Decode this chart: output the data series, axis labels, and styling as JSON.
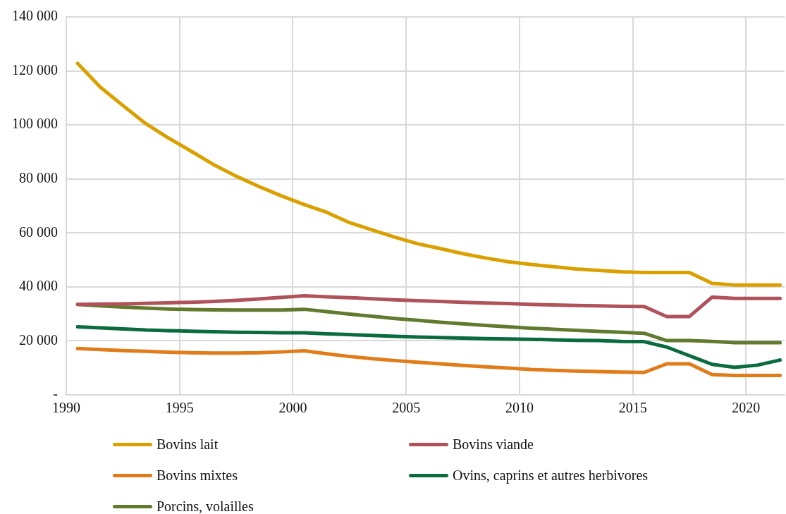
{
  "chart_data": {
    "type": "line",
    "x": [
      1990.5,
      1991.5,
      1992.5,
      1993.5,
      1994.5,
      1995.5,
      1996.5,
      1997.5,
      1998.5,
      1999.5,
      2000.5,
      2001.5,
      2002.5,
      2003.5,
      2004.5,
      2005.5,
      2006.5,
      2007.5,
      2008.5,
      2009.5,
      2010.5,
      2011.5,
      2012.5,
      2013.5,
      2014.5,
      2015.5,
      2016.5,
      2017.5,
      2018.5,
      2019.5,
      2020.5,
      2021.5
    ],
    "series": [
      {
        "name": "Bovins lait",
        "color": "#d9a000",
        "values": [
          122800,
          114000,
          107200,
          100500,
          95200,
          90300,
          85300,
          81000,
          77200,
          73700,
          70500,
          67600,
          63800,
          61100,
          58400,
          56000,
          54200,
          52300,
          50700,
          49300,
          48300,
          47500,
          46600,
          46100,
          45600,
          45300,
          45300,
          45300,
          41300,
          40700,
          40700,
          40700
        ]
      },
      {
        "name": "Bovins viande",
        "color": "#b0525a",
        "values": [
          33500,
          33600,
          33700,
          33900,
          34100,
          34300,
          34600,
          35000,
          35500,
          36100,
          36700,
          36300,
          36000,
          35600,
          35200,
          34900,
          34600,
          34300,
          34000,
          33800,
          33500,
          33300,
          33100,
          33000,
          32800,
          32700,
          29000,
          29000,
          36200,
          35700,
          35700,
          35700
        ]
      },
      {
        "name": "Bovins mixtes",
        "color": "#e07c1a",
        "values": [
          17200,
          16800,
          16400,
          16100,
          15800,
          15600,
          15500,
          15500,
          15600,
          15900,
          16300,
          15200,
          14200,
          13400,
          12700,
          12100,
          11500,
          10900,
          10400,
          9900,
          9400,
          9100,
          8800,
          8600,
          8400,
          8300,
          11500,
          11500,
          7500,
          7200,
          7200,
          7200
        ]
      },
      {
        "name": "Ovins, caprins et autres herbivores",
        "color": "#0a6b3e",
        "values": [
          25200,
          24800,
          24400,
          24000,
          23800,
          23600,
          23400,
          23200,
          23100,
          23000,
          23000,
          22600,
          22300,
          22000,
          21700,
          21400,
          21200,
          21000,
          20800,
          20700,
          20600,
          20400,
          20200,
          20100,
          19800,
          19700,
          17700,
          14500,
          11300,
          10200,
          11000,
          12900
        ]
      },
      {
        "name": "Porcins, volailles",
        "color": "#617a2e",
        "values": [
          33500,
          33000,
          32500,
          32100,
          31800,
          31600,
          31500,
          31400,
          31400,
          31400,
          31700,
          30800,
          29900,
          29100,
          28300,
          27600,
          26900,
          26300,
          25700,
          25200,
          24700,
          24300,
          23900,
          23500,
          23200,
          22800,
          20100,
          20100,
          19800,
          19300,
          19300,
          19300
        ]
      }
    ],
    "xlim": [
      1990,
      2021.7
    ],
    "xticks": [
      1990,
      1995,
      2000,
      2005,
      2010,
      2015,
      2020
    ],
    "ylim": [
      0,
      140000
    ],
    "yticks": [
      {
        "value": 0,
        "label": "-"
      },
      {
        "value": 20000,
        "label": "20 000"
      },
      {
        "value": 40000,
        "label": "40 000"
      },
      {
        "value": 60000,
        "label": "60 000"
      },
      {
        "value": 80000,
        "label": "80 000"
      },
      {
        "value": 100000,
        "label": "100 000"
      },
      {
        "value": 120000,
        "label": "120 000"
      },
      {
        "value": 140000,
        "label": "140 000"
      }
    ],
    "grid": true,
    "legend": "bottom",
    "marker": "none",
    "line_style": "solid"
  }
}
